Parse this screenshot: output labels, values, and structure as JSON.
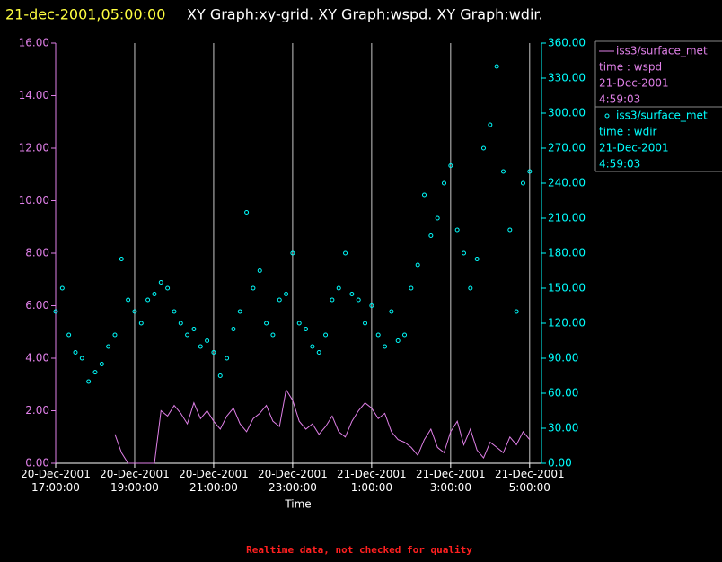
{
  "chart_data": {
    "type": "xy",
    "timestamp": "21-dec-2001,05:00:00",
    "title": "XY Graph:xy-grid.  XY Graph:wspd.  XY Graph:wdir.",
    "xlabel": "Time",
    "note": "Realtime data, not checked for quality",
    "x": [
      "2001-12-20T17:00",
      "2001-12-20T17:10",
      "2001-12-20T17:20",
      "2001-12-20T17:30",
      "2001-12-20T17:40",
      "2001-12-20T17:50",
      "2001-12-20T18:00",
      "2001-12-20T18:10",
      "2001-12-20T18:20",
      "2001-12-20T18:30",
      "2001-12-20T18:40",
      "2001-12-20T18:50",
      "2001-12-20T19:00",
      "2001-12-20T19:10",
      "2001-12-20T19:20",
      "2001-12-20T19:30",
      "2001-12-20T19:40",
      "2001-12-20T19:50",
      "2001-12-20T20:00",
      "2001-12-20T20:10",
      "2001-12-20T20:20",
      "2001-12-20T20:30",
      "2001-12-20T20:40",
      "2001-12-20T20:50",
      "2001-12-20T21:00",
      "2001-12-20T21:10",
      "2001-12-20T21:20",
      "2001-12-20T21:30",
      "2001-12-20T21:40",
      "2001-12-20T21:50",
      "2001-12-20T22:00",
      "2001-12-20T22:10",
      "2001-12-20T22:20",
      "2001-12-20T22:30",
      "2001-12-20T22:40",
      "2001-12-20T22:50",
      "2001-12-20T23:00",
      "2001-12-20T23:10",
      "2001-12-20T23:20",
      "2001-12-20T23:30",
      "2001-12-20T23:40",
      "2001-12-20T23:50",
      "2001-12-21T00:00",
      "2001-12-21T00:10",
      "2001-12-21T00:20",
      "2001-12-21T00:30",
      "2001-12-21T00:40",
      "2001-12-21T00:50",
      "2001-12-21T01:00",
      "2001-12-21T01:10",
      "2001-12-21T01:20",
      "2001-12-21T01:30",
      "2001-12-21T01:40",
      "2001-12-21T01:50",
      "2001-12-21T02:00",
      "2001-12-21T02:10",
      "2001-12-21T02:20",
      "2001-12-21T02:30",
      "2001-12-21T02:40",
      "2001-12-21T02:50",
      "2001-12-21T03:00",
      "2001-12-21T03:10",
      "2001-12-21T03:20",
      "2001-12-21T03:30",
      "2001-12-21T03:40",
      "2001-12-21T03:50",
      "2001-12-21T04:00",
      "2001-12-21T04:10",
      "2001-12-21T04:20",
      "2001-12-21T04:30",
      "2001-12-21T04:40",
      "2001-12-21T04:50",
      "2001-12-21T05:00"
    ],
    "series": [
      {
        "name": "iss3/surface_met",
        "legend": [
          "time : wspd",
          "21-Dec-2001",
          "4:59:03"
        ],
        "color": "#e080e8",
        "mode": "line",
        "values": [
          null,
          null,
          null,
          null,
          null,
          null,
          null,
          null,
          null,
          1.1,
          0.4,
          0,
          0,
          0,
          0,
          0,
          2.0,
          1.8,
          2.2,
          1.9,
          1.5,
          2.3,
          1.7,
          2.0,
          1.6,
          1.3,
          1.8,
          2.1,
          1.5,
          1.2,
          1.7,
          1.9,
          2.2,
          1.6,
          1.4,
          2.8,
          2.4,
          1.6,
          1.3,
          1.5,
          1.1,
          1.4,
          1.8,
          1.2,
          1.0,
          1.6,
          2.0,
          2.3,
          2.1,
          1.7,
          1.9,
          1.2,
          0.9,
          0.8,
          0.6,
          0.3,
          0.9,
          1.3,
          0.6,
          0.4,
          1.2,
          1.6,
          0.7,
          1.3,
          0.5,
          0.2,
          0.8,
          0.6,
          0.4,
          1.0,
          0.7,
          1.2,
          0.9
        ]
      },
      {
        "name": "iss3/surface_met",
        "legend": [
          "time : wdir",
          "21-Dec-2001",
          "4:59:03"
        ],
        "color": "#00ffff",
        "mode": "scatter",
        "axis": "y2",
        "values": [
          130,
          150,
          110,
          95,
          90,
          70,
          78,
          85,
          100,
          110,
          175,
          140,
          130,
          120,
          140,
          145,
          155,
          150,
          130,
          120,
          110,
          115,
          100,
          105,
          95,
          75,
          90,
          115,
          130,
          215,
          150,
          165,
          120,
          110,
          140,
          145,
          180,
          120,
          115,
          100,
          95,
          110,
          140,
          150,
          180,
          145,
          140,
          120,
          135,
          110,
          100,
          130,
          105,
          110,
          150,
          170,
          230,
          195,
          210,
          240,
          255,
          200,
          180,
          150,
          175,
          270,
          290,
          340,
          250,
          200,
          130,
          240,
          250
        ]
      }
    ],
    "xlim": [
      "2001-12-20T17:00",
      "2001-12-21T05:18"
    ],
    "xticks": [
      {
        "value": "2001-12-20T17:00",
        "label": "20-Dec-2001\n17:00:00"
      },
      {
        "value": "2001-12-20T19:00",
        "label": "20-Dec-2001\n19:00:00"
      },
      {
        "value": "2001-12-20T21:00",
        "label": "20-Dec-2001\n21:00:00"
      },
      {
        "value": "2001-12-20T23:00",
        "label": "20-Dec-2001\n23:00:00"
      },
      {
        "value": "2001-12-21T01:00",
        "label": "21-Dec-2001\n1:00:00"
      },
      {
        "value": "2001-12-21T03:00",
        "label": "21-Dec-2001\n3:00:00"
      },
      {
        "value": "2001-12-21T05:00",
        "label": "21-Dec-2001\n5:00:00"
      }
    ],
    "ylim": [
      0,
      16
    ],
    "yticks": [
      {
        "value": 0,
        "label": "0.00"
      },
      {
        "value": 2,
        "label": "2.00"
      },
      {
        "value": 4,
        "label": "4.00"
      },
      {
        "value": 6,
        "label": "6.00"
      },
      {
        "value": 8,
        "label": "8.00"
      },
      {
        "value": 10,
        "label": "10.00"
      },
      {
        "value": 12,
        "label": "12.00"
      },
      {
        "value": 14,
        "label": "14.00"
      },
      {
        "value": 16,
        "label": "16.00"
      }
    ],
    "y2lim": [
      0,
      360
    ],
    "y2ticks": [
      {
        "value": 0,
        "label": "0.00"
      },
      {
        "value": 30,
        "label": "30.00"
      },
      {
        "value": 60,
        "label": "60.00"
      },
      {
        "value": 90,
        "label": "90.00"
      },
      {
        "value": 120,
        "label": "120.00"
      },
      {
        "value": 150,
        "label": "150.00"
      },
      {
        "value": 180,
        "label": "180.00"
      },
      {
        "value": 210,
        "label": "210.00"
      },
      {
        "value": 240,
        "label": "240.00"
      },
      {
        "value": 270,
        "label": "270.00"
      },
      {
        "value": 300,
        "label": "300.00"
      },
      {
        "value": 330,
        "label": "330.00"
      },
      {
        "value": 360,
        "label": "360.00"
      }
    ],
    "grid": true
  }
}
